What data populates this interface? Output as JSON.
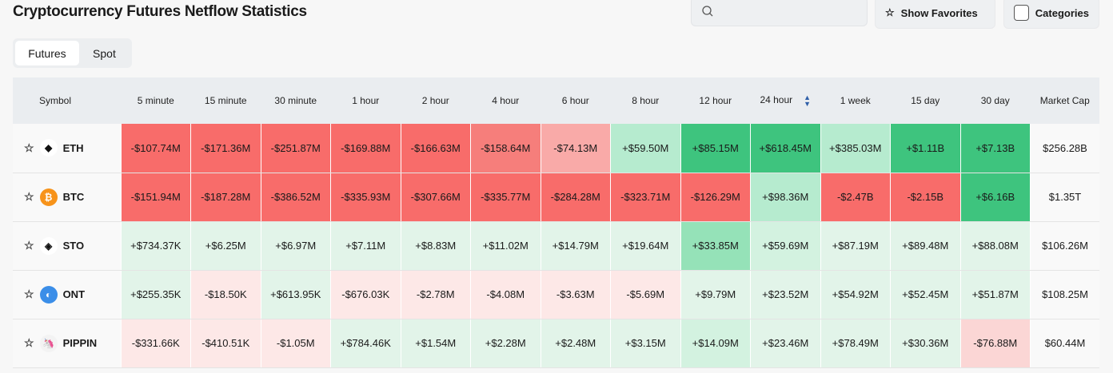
{
  "title": "Cryptocurrency Futures Netflow Statistics",
  "search": {
    "placeholder": ""
  },
  "show_favorites": "Show Favorites",
  "categories": "Categories",
  "tabs": [
    "Futures",
    "Spot"
  ],
  "active_tab": "Futures",
  "columns": [
    "Symbol",
    "5 minute",
    "15 minute",
    "30 minute",
    "1 hour",
    "2 hour",
    "4 hour",
    "6 hour",
    "8 hour",
    "12 hour",
    "24 hour",
    "1 week",
    "15 day",
    "30 day",
    "Market Cap"
  ],
  "sorted_column": "24 hour",
  "tier_colors": {
    "r3": "#f86c6a",
    "r2": "#f67e7b",
    "r1": "#f9aaa8",
    "r0": "#fde8e7",
    "rl": "#fbd6d5",
    "g3": "#3ec47e",
    "g2": "#95e2b8",
    "g1": "#b6ebcf",
    "gl": "#d3f2e0",
    "g0": "#e2f4e9"
  },
  "rows": [
    {
      "symbol": "ETH",
      "icon": "eth-icon",
      "icon_color": "#ffffff",
      "values": [
        "-$107.74M",
        "-$171.36M",
        "-$251.87M",
        "-$169.88M",
        "-$166.63M",
        "-$158.64M",
        "-$74.13M",
        "+$59.50M",
        "+$85.15M",
        "+$618.45M",
        "+$385.03M",
        "+$1.11B",
        "+$7.13B"
      ],
      "tiers": [
        "r3",
        "r3",
        "r3",
        "r3",
        "r3",
        "r2",
        "r1",
        "g1",
        "g3",
        "g3",
        "g1",
        "g3",
        "g3"
      ],
      "market_cap": "$256.28B"
    },
    {
      "symbol": "BTC",
      "icon": "btc-icon",
      "icon_color": "#f7931a",
      "values": [
        "-$151.94M",
        "-$187.28M",
        "-$386.52M",
        "-$335.93M",
        "-$307.66M",
        "-$335.77M",
        "-$284.28M",
        "-$323.71M",
        "-$126.29M",
        "+$98.36M",
        "-$2.47B",
        "-$2.15B",
        "+$6.16B"
      ],
      "tiers": [
        "r3",
        "r3",
        "r3",
        "r3",
        "r3",
        "r3",
        "r3",
        "r3",
        "r3",
        "g1",
        "r3",
        "r3",
        "g3"
      ],
      "market_cap": "$1.35T"
    },
    {
      "symbol": "STO",
      "icon": "sto-icon",
      "icon_color": "#ffffff",
      "values": [
        "+$734.37K",
        "+$6.25M",
        "+$6.97M",
        "+$7.11M",
        "+$8.83M",
        "+$11.02M",
        "+$14.79M",
        "+$19.64M",
        "+$33.85M",
        "+$59.69M",
        "+$87.19M",
        "+$89.48M",
        "+$88.08M"
      ],
      "tiers": [
        "g0",
        "g0",
        "g0",
        "g0",
        "g0",
        "g0",
        "g0",
        "g0",
        "g2",
        "gl",
        "g0",
        "g0",
        "g0"
      ],
      "market_cap": "$106.26M"
    },
    {
      "symbol": "ONT",
      "icon": "ont-icon",
      "icon_color": "#3b8ee8",
      "values": [
        "+$255.35K",
        "-$18.50K",
        "+$613.95K",
        "-$676.03K",
        "-$2.78M",
        "-$4.08M",
        "-$3.63M",
        "-$5.69M",
        "+$9.79M",
        "+$23.52M",
        "+$54.92M",
        "+$52.45M",
        "+$51.87M"
      ],
      "tiers": [
        "g0",
        "r0",
        "g0",
        "r0",
        "r0",
        "r0",
        "r0",
        "r0",
        "g0",
        "g0",
        "g0",
        "g0",
        "g0"
      ],
      "market_cap": "$108.25M"
    },
    {
      "symbol": "PIPPIN",
      "icon": "pippin-icon",
      "icon_color": "#f3f3f3",
      "values": [
        "-$331.66K",
        "-$410.51K",
        "-$1.05M",
        "+$784.46K",
        "+$1.54M",
        "+$2.28M",
        "+$2.48M",
        "+$3.15M",
        "+$14.09M",
        "+$23.46M",
        "+$78.49M",
        "+$30.36M",
        "-$76.88M"
      ],
      "tiers": [
        "r0",
        "r0",
        "r0",
        "g0",
        "g0",
        "g0",
        "g0",
        "g0",
        "gl",
        "g0",
        "g0",
        "g0",
        "rl"
      ],
      "market_cap": "$60.44M"
    }
  ]
}
